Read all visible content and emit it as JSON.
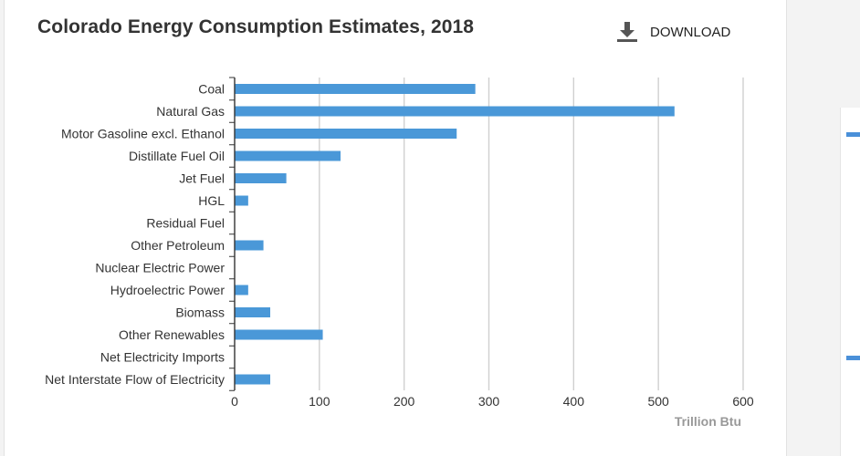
{
  "header": {
    "title": "Colorado Energy Consumption Estimates, 2018"
  },
  "toolbar": {
    "download_label": "DOWNLOAD",
    "download_icon": "download-icon"
  },
  "chart_data": {
    "type": "bar",
    "orientation": "horizontal",
    "title": "Colorado Energy Consumption Estimates, 2018",
    "xlabel": "Trillion Btu",
    "ylabel": "",
    "xlim": [
      0,
      600
    ],
    "xticks": [
      0,
      100,
      200,
      300,
      400,
      500,
      600
    ],
    "grid": true,
    "bar_color": "#4a98d8",
    "categories": [
      "Coal",
      "Natural Gas",
      "Motor Gasoline excl. Ethanol",
      "Distillate Fuel Oil",
      "Jet Fuel",
      "HGL",
      "Residual Fuel",
      "Other Petroleum",
      "Nuclear Electric Power",
      "Hydroelectric Power",
      "Biomass",
      "Other Renewables",
      "Net Electricity Imports",
      "Net Interstate Flow of Electricity"
    ],
    "values": [
      284,
      519,
      262,
      125,
      61,
      16,
      0,
      34,
      0,
      16,
      42,
      104,
      0,
      42
    ]
  },
  "sidebar": {
    "accent_color": "#4a90d9"
  }
}
